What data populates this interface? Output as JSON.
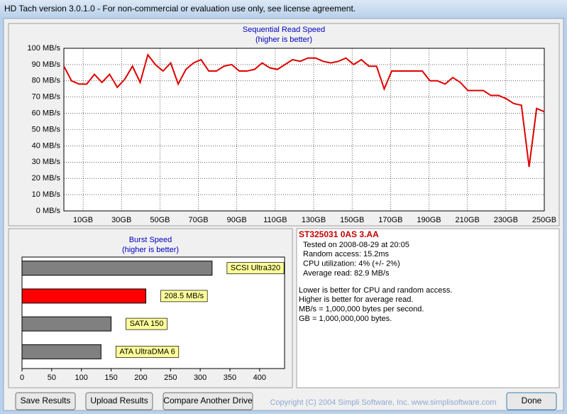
{
  "window": {
    "title": "HD Tach version 3.0.1.0  - For non-commercial or evaluation use only, see license agreement."
  },
  "chart_data": [
    {
      "type": "line",
      "title": "Sequential Read Speed",
      "subtitle": "(higher is better)",
      "x": [
        0,
        4.0,
        7.9,
        11.9,
        15.9,
        19.8,
        23.8,
        27.8,
        31.7,
        35.7,
        39.7,
        43.7,
        47.6,
        51.6,
        55.6,
        59.5,
        63.5,
        67.5,
        71.4,
        75.4,
        79.4,
        83.3,
        87.3,
        91.3,
        95.2,
        99.2,
        103.2,
        107.1,
        111.1,
        115.1,
        119.0,
        123.0,
        127.0,
        131.0,
        134.9,
        138.9,
        142.9,
        146.8,
        150.8,
        154.8,
        158.7,
        162.7,
        166.7,
        170.6,
        174.6,
        178.6,
        182.5,
        186.5,
        190.5,
        194.4,
        198.4,
        202.4,
        206.3,
        210.3,
        214.3,
        218.3,
        222.2,
        226.2,
        230.2,
        234.1,
        238.1,
        242.1,
        246.0,
        250
      ],
      "values": [
        89,
        80,
        78,
        78,
        84,
        79,
        84,
        76,
        81,
        89,
        79,
        96,
        90,
        86,
        91,
        78,
        87,
        91,
        93,
        86,
        86,
        89,
        90,
        86,
        86,
        87,
        91,
        88,
        87,
        90,
        93,
        92,
        94,
        94,
        92,
        91,
        92,
        94,
        90,
        93,
        89,
        89,
        75,
        86,
        86,
        86,
        86,
        86,
        80,
        80,
        78,
        82,
        79,
        74,
        74,
        74,
        71,
        71,
        69,
        66,
        65,
        27,
        63,
        61
      ],
      "color": "#e00000",
      "xlim": [
        0,
        250
      ],
      "ylim": [
        0,
        100
      ],
      "grid": true,
      "xticks": [
        {
          "value": 10,
          "label": "10GB"
        },
        {
          "value": 30,
          "label": "30GB"
        },
        {
          "value": 50,
          "label": "50GB"
        },
        {
          "value": 70,
          "label": "70GB"
        },
        {
          "value": 90,
          "label": "90GB"
        },
        {
          "value": 110,
          "label": "110GB"
        },
        {
          "value": 130,
          "label": "130GB"
        },
        {
          "value": 150,
          "label": "150GB"
        },
        {
          "value": 170,
          "label": "170GB"
        },
        {
          "value": 190,
          "label": "190GB"
        },
        {
          "value": 210,
          "label": "210GB"
        },
        {
          "value": 230,
          "label": "230GB"
        },
        {
          "value": 250,
          "label": "250GB"
        }
      ],
      "yticks": [
        {
          "value": 0,
          "label": "0 MB/s"
        },
        {
          "value": 10,
          "label": "10 MB/s"
        },
        {
          "value": 20,
          "label": "20 MB/s"
        },
        {
          "value": 30,
          "label": "30 MB/s"
        },
        {
          "value": 40,
          "label": "40 MB/s"
        },
        {
          "value": 50,
          "label": "50 MB/s"
        },
        {
          "value": 60,
          "label": "60 MB/s"
        },
        {
          "value": 70,
          "label": "70 MB/s"
        },
        {
          "value": 80,
          "label": "80 MB/s"
        },
        {
          "value": 90,
          "label": "90 MB/s"
        },
        {
          "value": 100,
          "label": "100 MB/s"
        }
      ]
    },
    {
      "type": "bar",
      "orientation": "horizontal",
      "title": "Burst Speed",
      "subtitle": "(higher is better)",
      "categories": [
        "SCSI Ultra320",
        null,
        "SATA 150",
        "ATA UltraDMA 6"
      ],
      "values": [
        320,
        208.5,
        150,
        133
      ],
      "value_labels": [
        null,
        "208.5 MB/s",
        null,
        null
      ],
      "colors": [
        "#808080",
        "#ff0000",
        "#808080",
        "#808080"
      ],
      "xlim": [
        0,
        442
      ],
      "xticks": [
        0,
        50,
        100,
        150,
        200,
        250,
        300,
        350,
        400
      ]
    }
  ],
  "info": {
    "drive": "ST325031 0AS 3.AA",
    "lines": [
      "Tested on 2008-08-29 at 20:05",
      "Random access: 15.2ms",
      "CPU utilization: 4% (+/- 2%)",
      "Average read: 82.9 MB/s"
    ],
    "notes": [
      "Lower is better for CPU and random access.",
      "Higher is better for average read.",
      "MB/s = 1,000,000 bytes per second.",
      "GB = 1,000,000,000 bytes."
    ]
  },
  "buttons": [
    "Save Results",
    "Upload Results",
    "Compare Another Drive",
    "Done"
  ],
  "copyright": "Copyright (C) 2004 Simpli Software, Inc. www.simplisoftware.com"
}
